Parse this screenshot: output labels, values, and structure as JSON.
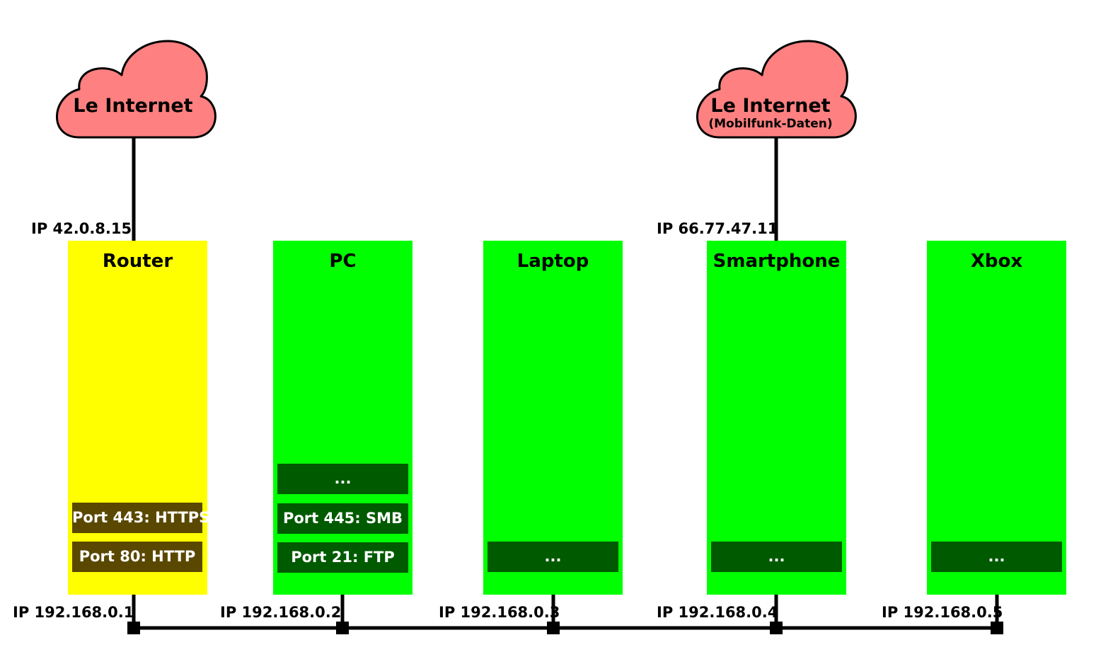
{
  "colors": {
    "cloud_fill": "#ff8080",
    "router_fill": "#ffff00",
    "device_fill": "#00ff00",
    "router_port_fill": "#5a4800",
    "device_port_fill": "#005a00",
    "line": "#000000"
  },
  "clouds": [
    {
      "title": "Le Internet",
      "subtitle": ""
    },
    {
      "title": "Le Internet",
      "subtitle": "(Mobilfunk-Daten)"
    }
  ],
  "public_ips": [
    "IP 42.0.8.15",
    "IP 66.77.47.11"
  ],
  "devices": [
    {
      "name": "Router",
      "ports": [
        "Port 443: HTTPS",
        "Port 80: HTTP"
      ],
      "ip": "IP 192.168.0.1"
    },
    {
      "name": "PC",
      "ports": [
        "...",
        "Port 445: SMB",
        "Port 21: FTP"
      ],
      "ip": "IP 192.168.0.2"
    },
    {
      "name": "Laptop",
      "ports": [
        "..."
      ],
      "ip": "IP 192.168.0.3"
    },
    {
      "name": "Smartphone",
      "ports": [
        "..."
      ],
      "ip": "IP 192.168.0.4"
    },
    {
      "name": "Xbox",
      "ports": [
        "..."
      ],
      "ip": "IP 192.168.0.5"
    }
  ]
}
